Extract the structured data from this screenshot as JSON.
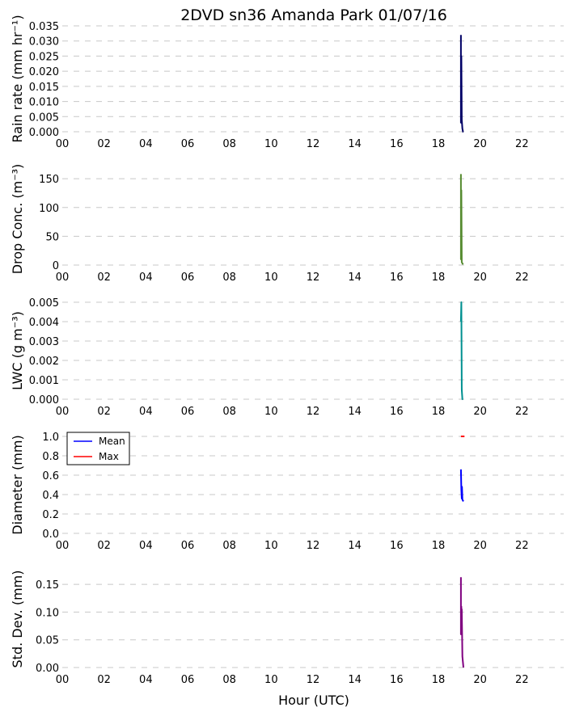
{
  "title": "2DVD sn36 Amanda Park 01/07/16",
  "chart_data": [
    {
      "type": "line",
      "ylabel": "Rain rate (mm hr⁻¹)",
      "ylim": [
        0,
        0.035
      ],
      "yticks": [
        "0.000",
        "0.005",
        "0.010",
        "0.015",
        "0.020",
        "0.025",
        "0.030",
        "0.035"
      ],
      "xlim": [
        0,
        24
      ],
      "xticks": [
        "00",
        "02",
        "04",
        "06",
        "08",
        "10",
        "12",
        "14",
        "16",
        "18",
        "20",
        "22"
      ],
      "grid": "y, dashed",
      "series": [
        {
          "color": "#000066",
          "x": [
            19.08,
            19.08,
            19.1,
            19.12,
            19.15,
            19.18,
            19.2
          ],
          "y": [
            0.032,
            0.003,
            0.025,
            0.004,
            0.001,
            0.0,
            0.0
          ]
        }
      ]
    },
    {
      "type": "line",
      "ylabel": "Drop Conc. (m⁻³)",
      "ylim": [
        0,
        160
      ],
      "yticks": [
        "0",
        "50",
        "100",
        "150"
      ],
      "xlim": [
        0,
        24
      ],
      "xticks": [
        "00",
        "02",
        "04",
        "06",
        "08",
        "10",
        "12",
        "14",
        "16",
        "18",
        "20",
        "22"
      ],
      "grid": "y, dashed",
      "series": [
        {
          "color": "#558b2f",
          "x": [
            19.08,
            19.08,
            19.1,
            19.12,
            19.15,
            19.18
          ],
          "y": [
            158,
            10,
            130,
            5,
            3,
            1
          ]
        }
      ]
    },
    {
      "type": "line",
      "ylabel": "LWC (g m⁻³)",
      "ylim": [
        0,
        0.005
      ],
      "yticks": [
        "0.000",
        "0.001",
        "0.002",
        "0.003",
        "0.004",
        "0.005"
      ],
      "xlim": [
        0,
        24
      ],
      "xticks": [
        "00",
        "02",
        "04",
        "06",
        "08",
        "10",
        "12",
        "14",
        "16",
        "18",
        "20",
        "22"
      ],
      "grid": "y, dashed",
      "series": [
        {
          "color": "#009090",
          "x": [
            19.08,
            19.1,
            19.12,
            19.15,
            19.18
          ],
          "y": [
            0.004,
            0.005,
            0.0005,
            0.0,
            0.0
          ]
        }
      ]
    },
    {
      "type": "line",
      "ylabel": "Diameter (mm)",
      "ylim": [
        0,
        1.0
      ],
      "yticks": [
        "0.0",
        "0.2",
        "0.4",
        "0.6",
        "0.8",
        "1.0"
      ],
      "xlim": [
        0,
        24
      ],
      "xticks": [
        "00",
        "02",
        "04",
        "06",
        "08",
        "10",
        "12",
        "14",
        "16",
        "18",
        "20",
        "22"
      ],
      "grid": "y, dashed",
      "legend": {
        "position": "top-left",
        "entries": [
          {
            "label": "Mean",
            "color": "#0000ff"
          },
          {
            "label": "Max",
            "color": "#ff0000"
          }
        ]
      },
      "series": [
        {
          "name": "Mean",
          "color": "#0000ff",
          "x": [
            19.08,
            19.1,
            19.12,
            19.13,
            19.15,
            19.17,
            19.2
          ],
          "y": [
            0.66,
            0.45,
            0.36,
            0.48,
            0.35,
            0.34,
            0.33
          ]
        },
        {
          "name": "Max",
          "color": "#ff0000",
          "x": [
            19.08,
            19.25
          ],
          "y": [
            1.0,
            1.0
          ]
        }
      ]
    },
    {
      "type": "line",
      "ylabel": "Std. Dev. (mm)",
      "ylim": [
        0,
        0.175
      ],
      "yticks": [
        "0.00",
        "0.05",
        "0.10",
        "0.15"
      ],
      "xlim": [
        0,
        24
      ],
      "xticks": [
        "00",
        "02",
        "04",
        "06",
        "08",
        "10",
        "12",
        "14",
        "16",
        "18",
        "20",
        "22"
      ],
      "xlabel": "Hour (UTC)",
      "grid": "y, dashed",
      "series": [
        {
          "color": "#800080",
          "x": [
            19.08,
            19.08,
            19.1,
            19.12,
            19.12,
            19.15,
            19.2
          ],
          "y": [
            0.163,
            0.06,
            0.11,
            0.065,
            0.105,
            0.02,
            0.0
          ]
        }
      ]
    }
  ]
}
